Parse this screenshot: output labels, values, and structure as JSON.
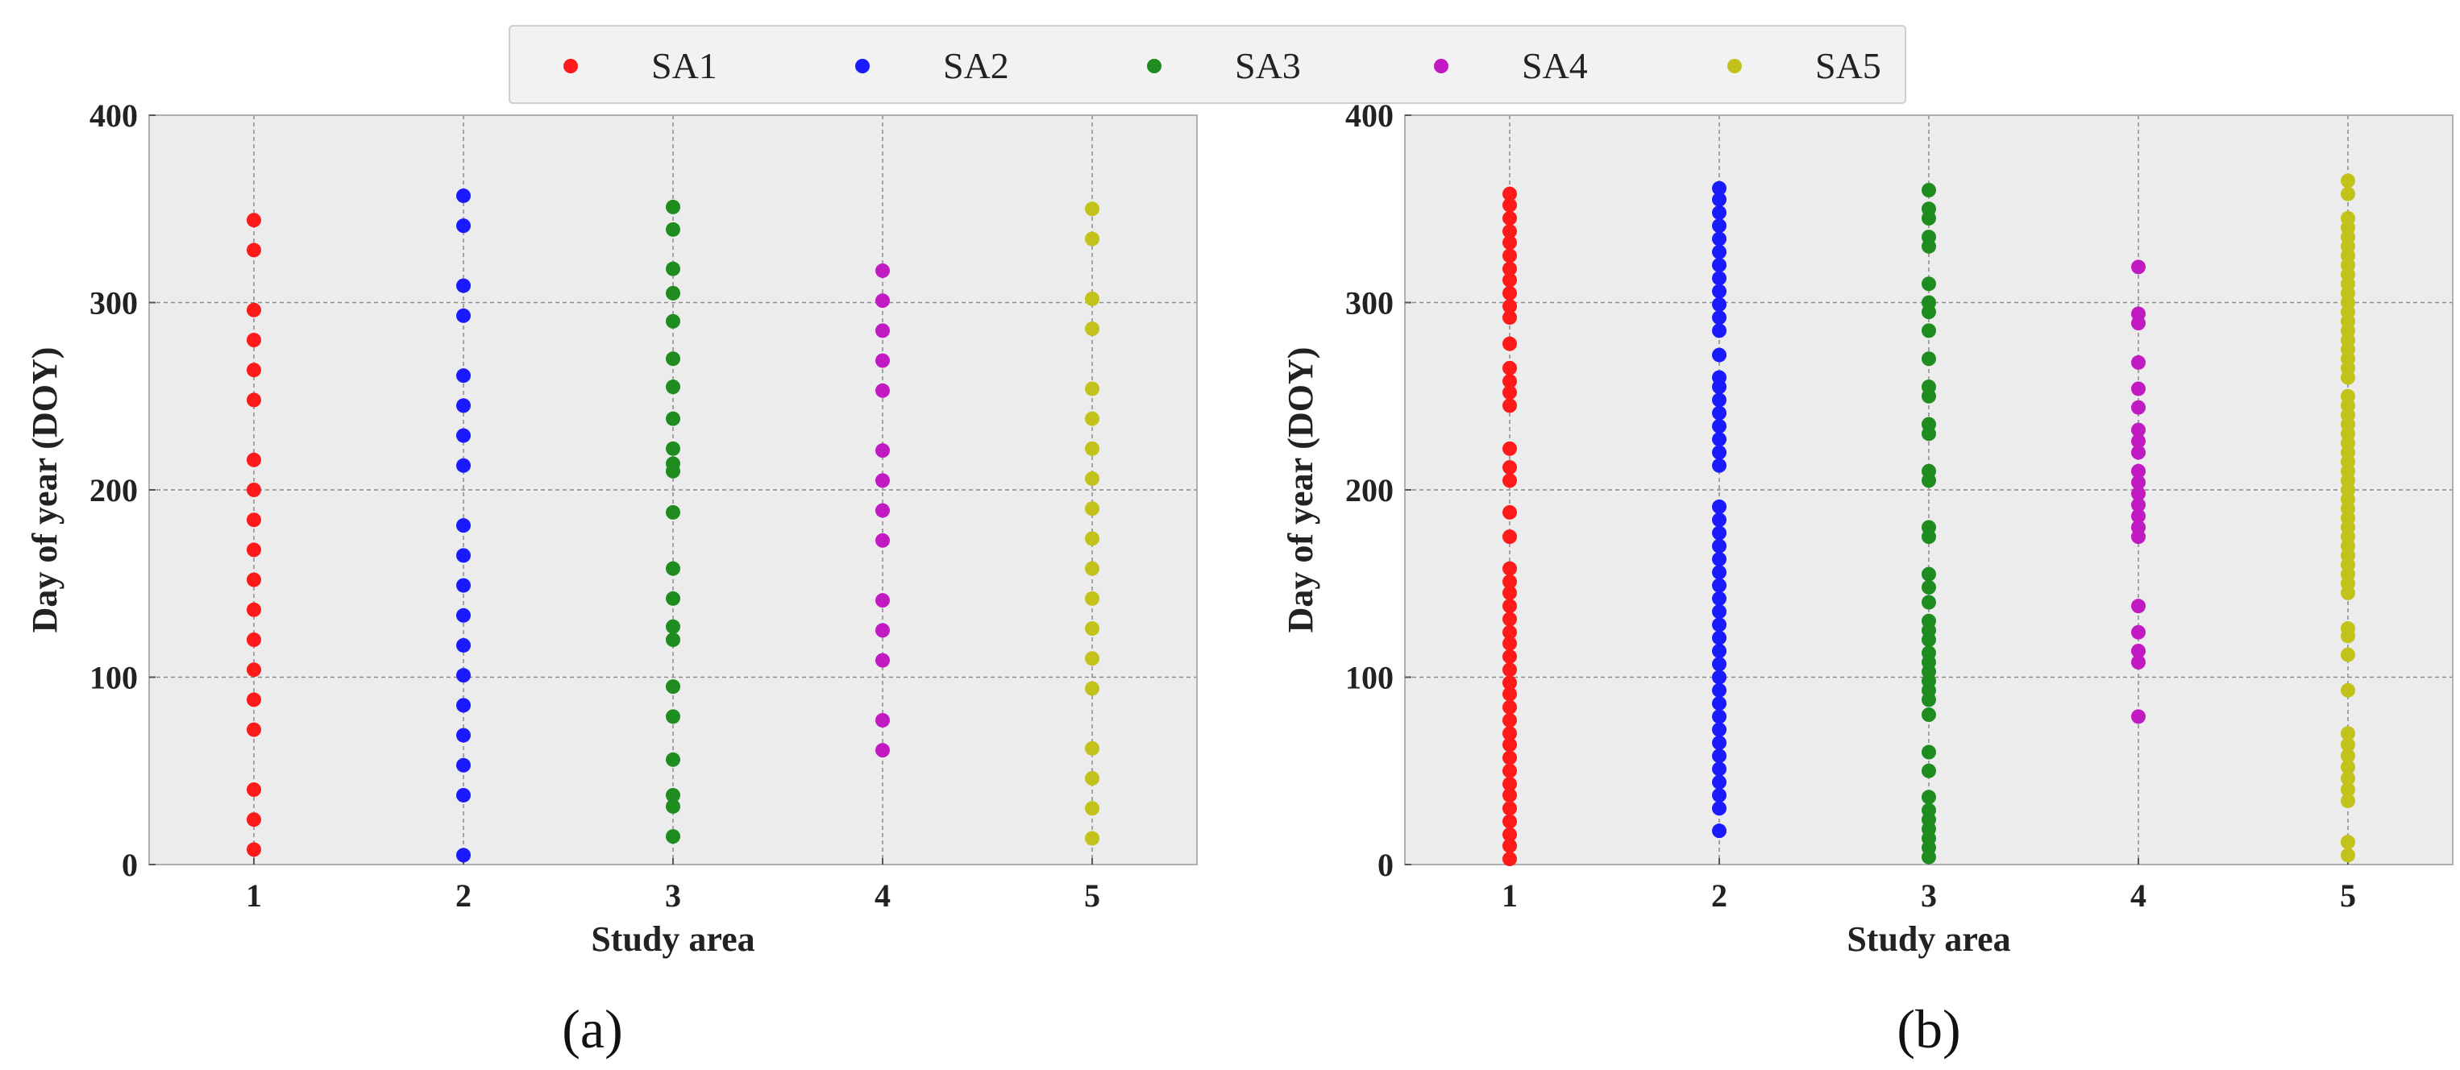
{
  "legend": [
    {
      "label": "SA1",
      "color": "#ff1a1a"
    },
    {
      "label": "SA2",
      "color": "#1a1aff"
    },
    {
      "label": "SA3",
      "color": "#1e8c1e"
    },
    {
      "label": "SA4",
      "color": "#c21ac2"
    },
    {
      "label": "SA5",
      "color": "#c2c21a"
    }
  ],
  "chart_data": [
    {
      "type": "scatter",
      "panel_label": "(a)",
      "xlabel": "Study area",
      "ylabel": "Day of year (DOY)",
      "xlim": [
        0.5,
        5.5
      ],
      "ylim": [
        0,
        400
      ],
      "xticks": [
        "1",
        "2",
        "3",
        "4",
        "5"
      ],
      "yticks": [
        "0",
        "100",
        "200",
        "300",
        "400"
      ],
      "grid": true,
      "series": [
        {
          "name": "SA1",
          "x": 1,
          "values": [
            8,
            24,
            40,
            72,
            88,
            104,
            120,
            136,
            152,
            168,
            184,
            200,
            216,
            248,
            264,
            280,
            296,
            328,
            344
          ]
        },
        {
          "name": "SA2",
          "x": 2,
          "values": [
            5,
            37,
            53,
            69,
            85,
            101,
            117,
            133,
            149,
            165,
            181,
            213,
            229,
            245,
            261,
            293,
            309,
            341,
            357
          ]
        },
        {
          "name": "SA3",
          "x": 3,
          "values": [
            15,
            31,
            37,
            56,
            79,
            95,
            120,
            127,
            142,
            158,
            188,
            210,
            214,
            222,
            238,
            255,
            270,
            290,
            305,
            318,
            339,
            351
          ]
        },
        {
          "name": "SA4",
          "x": 4,
          "values": [
            61,
            77,
            109,
            125,
            141,
            173,
            189,
            205,
            221,
            253,
            269,
            285,
            301,
            317
          ]
        },
        {
          "name": "SA5",
          "x": 5,
          "values": [
            14,
            30,
            46,
            62,
            94,
            110,
            126,
            142,
            158,
            174,
            190,
            206,
            222,
            238,
            254,
            286,
            302,
            334,
            350
          ]
        }
      ]
    },
    {
      "type": "scatter",
      "panel_label": "(b)",
      "xlabel": "Study area",
      "ylabel": "Day of year (DOY)",
      "xlim": [
        0.5,
        5.5
      ],
      "ylim": [
        0,
        400
      ],
      "xticks": [
        "1",
        "2",
        "3",
        "4",
        "5"
      ],
      "yticks": [
        "0",
        "100",
        "200",
        "300",
        "400"
      ],
      "grid": true,
      "series": [
        {
          "name": "SA1",
          "x": 1,
          "values": [
            3,
            10,
            16,
            23,
            30,
            37,
            43,
            50,
            57,
            64,
            70,
            77,
            84,
            91,
            97,
            104,
            111,
            118,
            124,
            131,
            138,
            145,
            151,
            158,
            175,
            188,
            205,
            212,
            222,
            245,
            252,
            258,
            265,
            278,
            292,
            298,
            305,
            312,
            318,
            325,
            332,
            338,
            345,
            352,
            358
          ]
        },
        {
          "name": "SA2",
          "x": 2,
          "values": [
            18,
            30,
            37,
            44,
            51,
            58,
            65,
            72,
            79,
            86,
            93,
            100,
            107,
            114,
            121,
            128,
            135,
            142,
            149,
            156,
            163,
            170,
            177,
            184,
            191,
            213,
            220,
            227,
            234,
            241,
            248,
            255,
            260,
            272,
            285,
            292,
            299,
            306,
            313,
            320,
            327,
            334,
            341,
            348,
            355,
            361
          ]
        },
        {
          "name": "SA3",
          "x": 3,
          "values": [
            4,
            9,
            14,
            19,
            24,
            29,
            36,
            50,
            60,
            80,
            88,
            93,
            98,
            103,
            108,
            113,
            120,
            125,
            130,
            140,
            148,
            155,
            175,
            180,
            205,
            210,
            230,
            235,
            250,
            255,
            270,
            285,
            295,
            300,
            310,
            330,
            335,
            345,
            350,
            360
          ]
        },
        {
          "name": "SA4",
          "x": 4,
          "values": [
            79,
            108,
            114,
            124,
            138,
            175,
            180,
            186,
            192,
            198,
            204,
            210,
            220,
            226,
            232,
            244,
            254,
            268,
            289,
            294,
            319
          ]
        },
        {
          "name": "SA5",
          "x": 5,
          "values": [
            5,
            12,
            34,
            40,
            46,
            52,
            58,
            64,
            70,
            93,
            112,
            122,
            126,
            145,
            150,
            155,
            160,
            165,
            170,
            175,
            180,
            185,
            190,
            195,
            200,
            205,
            210,
            215,
            220,
            225,
            230,
            235,
            240,
            245,
            250,
            260,
            265,
            270,
            275,
            280,
            285,
            290,
            295,
            300,
            305,
            310,
            315,
            320,
            325,
            330,
            335,
            340,
            345,
            358,
            365
          ]
        }
      ]
    }
  ]
}
